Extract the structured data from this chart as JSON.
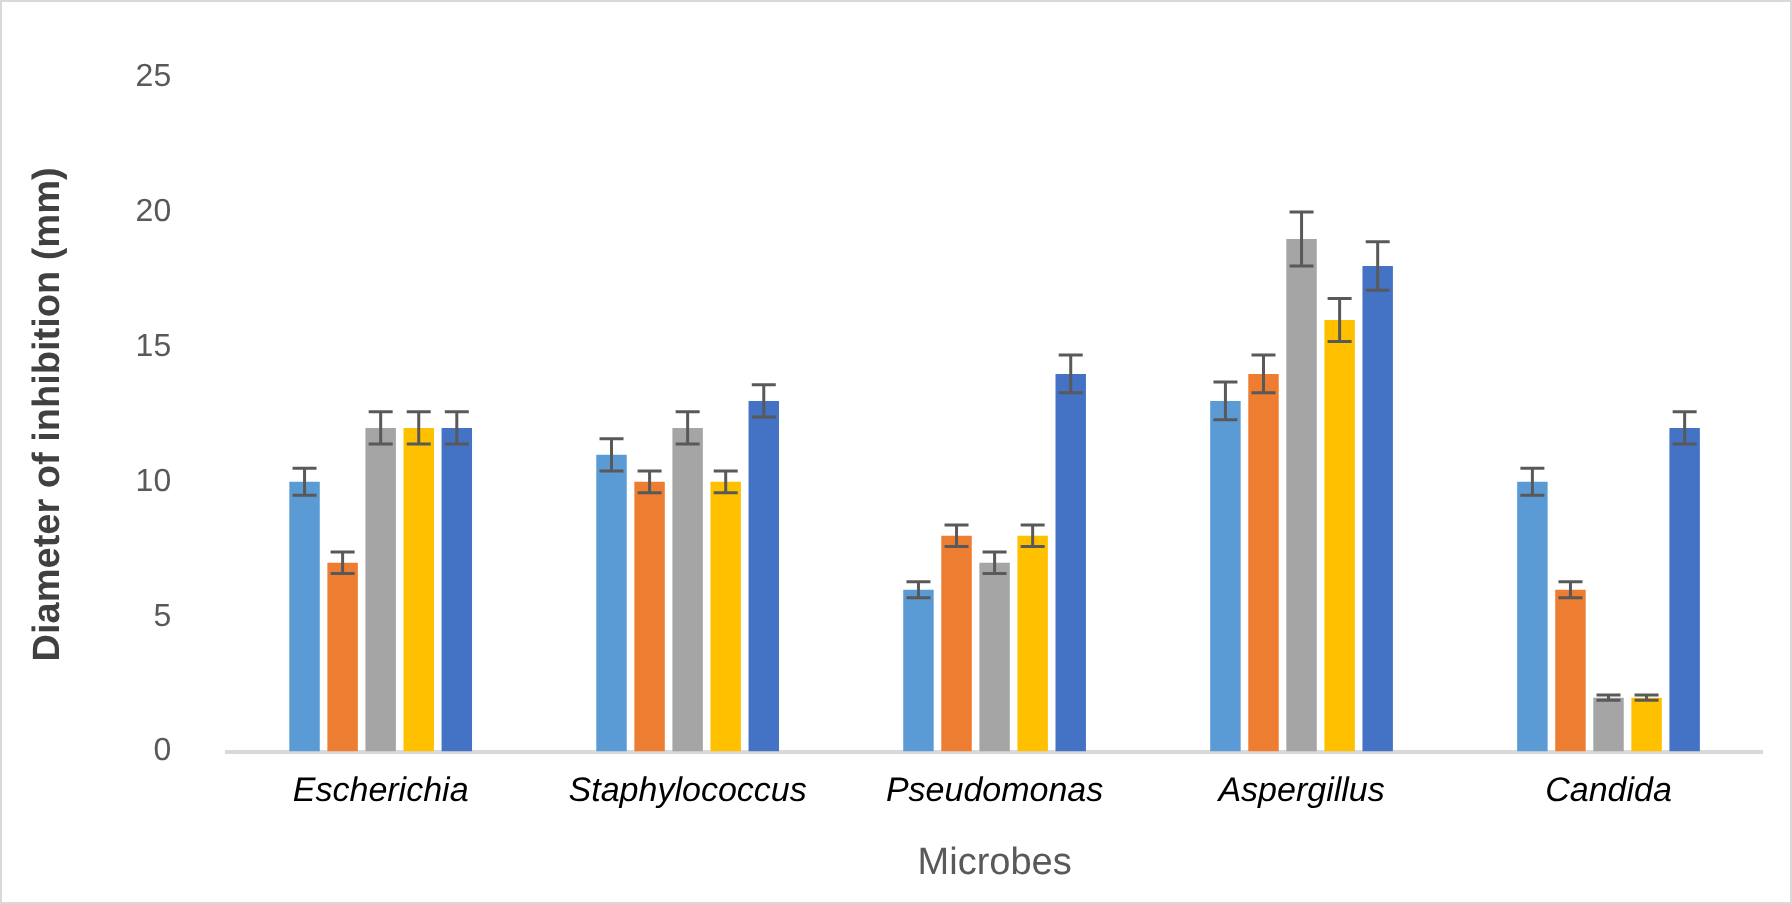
{
  "chart_data": {
    "type": "bar",
    "xlabel": "Microbes",
    "ylabel": "Diameter of inhibition (mm)",
    "categories": [
      "Escherichia",
      "Staphylococcus",
      "Pseudomonas",
      "Aspergillus",
      "Candida"
    ],
    "series": [
      {
        "color": "#5b9bd5",
        "values": [
          10,
          11,
          6,
          13,
          10
        ],
        "errors": [
          0.5,
          0.6,
          0.3,
          0.7,
          0.5
        ]
      },
      {
        "color": "#ed7d31",
        "values": [
          7,
          10,
          8,
          14,
          6
        ],
        "errors": [
          0.4,
          0.4,
          0.4,
          0.7,
          0.3
        ]
      },
      {
        "color": "#a5a5a5",
        "values": [
          12,
          12,
          7,
          19,
          2
        ],
        "errors": [
          0.6,
          0.6,
          0.4,
          1,
          0.1
        ]
      },
      {
        "color": "#ffc000",
        "values": [
          12,
          10,
          8,
          16,
          2
        ],
        "errors": [
          0.6,
          0.4,
          0.4,
          0.8,
          0.1
        ]
      },
      {
        "color": "#4472c4",
        "values": [
          12,
          13,
          14,
          18,
          12
        ],
        "errors": [
          0.6,
          0.6,
          0.7,
          0.9,
          0.6
        ]
      }
    ],
    "ylim": [
      0,
      25
    ],
    "yticks": [
      0,
      5,
      10,
      15,
      20,
      25
    ],
    "grid": false,
    "legend": false
  }
}
